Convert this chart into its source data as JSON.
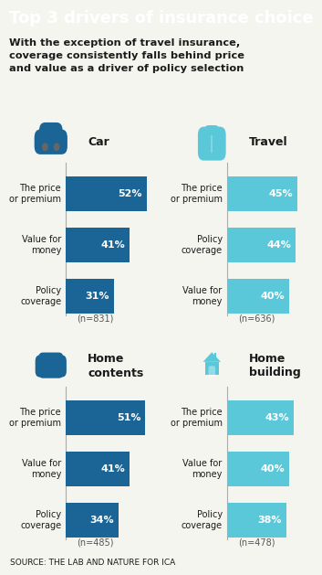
{
  "title": "Top 3 drivers of insurance choice",
  "subtitle": "With the exception of travel insurance,\ncoverage consistently falls behind price\nand value as a driver of policy selection",
  "source": "SOURCE: THE LAB AND NATURE FOR ICA",
  "panels": [
    {
      "name": "Car",
      "icon": "car",
      "color": "#1a6496",
      "n": "n=831",
      "labels": [
        "The price\nor premium",
        "Value for\nmoney",
        "Policy\ncoverage"
      ],
      "values": [
        52,
        41,
        31
      ]
    },
    {
      "name": "Travel",
      "icon": "travel",
      "color": "#5bc8d9",
      "n": "n=636",
      "labels": [
        "The price\nor premium",
        "Policy\ncoverage",
        "Value for\nmoney"
      ],
      "values": [
        45,
        44,
        40
      ]
    },
    {
      "name": "Home\ncontents",
      "icon": "home_contents",
      "color": "#1a6496",
      "n": "n=485",
      "labels": [
        "The price\nor premium",
        "Value for\nmoney",
        "Policy\ncoverage"
      ],
      "values": [
        51,
        41,
        34
      ]
    },
    {
      "name": "Home\nbuilding",
      "icon": "home_building",
      "color": "#5bc8d9",
      "n": "n=478",
      "labels": [
        "The price\nor premium",
        "Value for\nmoney",
        "Policy\ncoverage"
      ],
      "values": [
        43,
        40,
        38
      ]
    }
  ],
  "bg_color": "#f5f5f0",
  "title_bg": "#1a6496",
  "title_color": "#ffffff",
  "subtitle_color": "#1a1a1a",
  "source_bg": "#cce8f0",
  "bar_text_color": "#ffffff"
}
